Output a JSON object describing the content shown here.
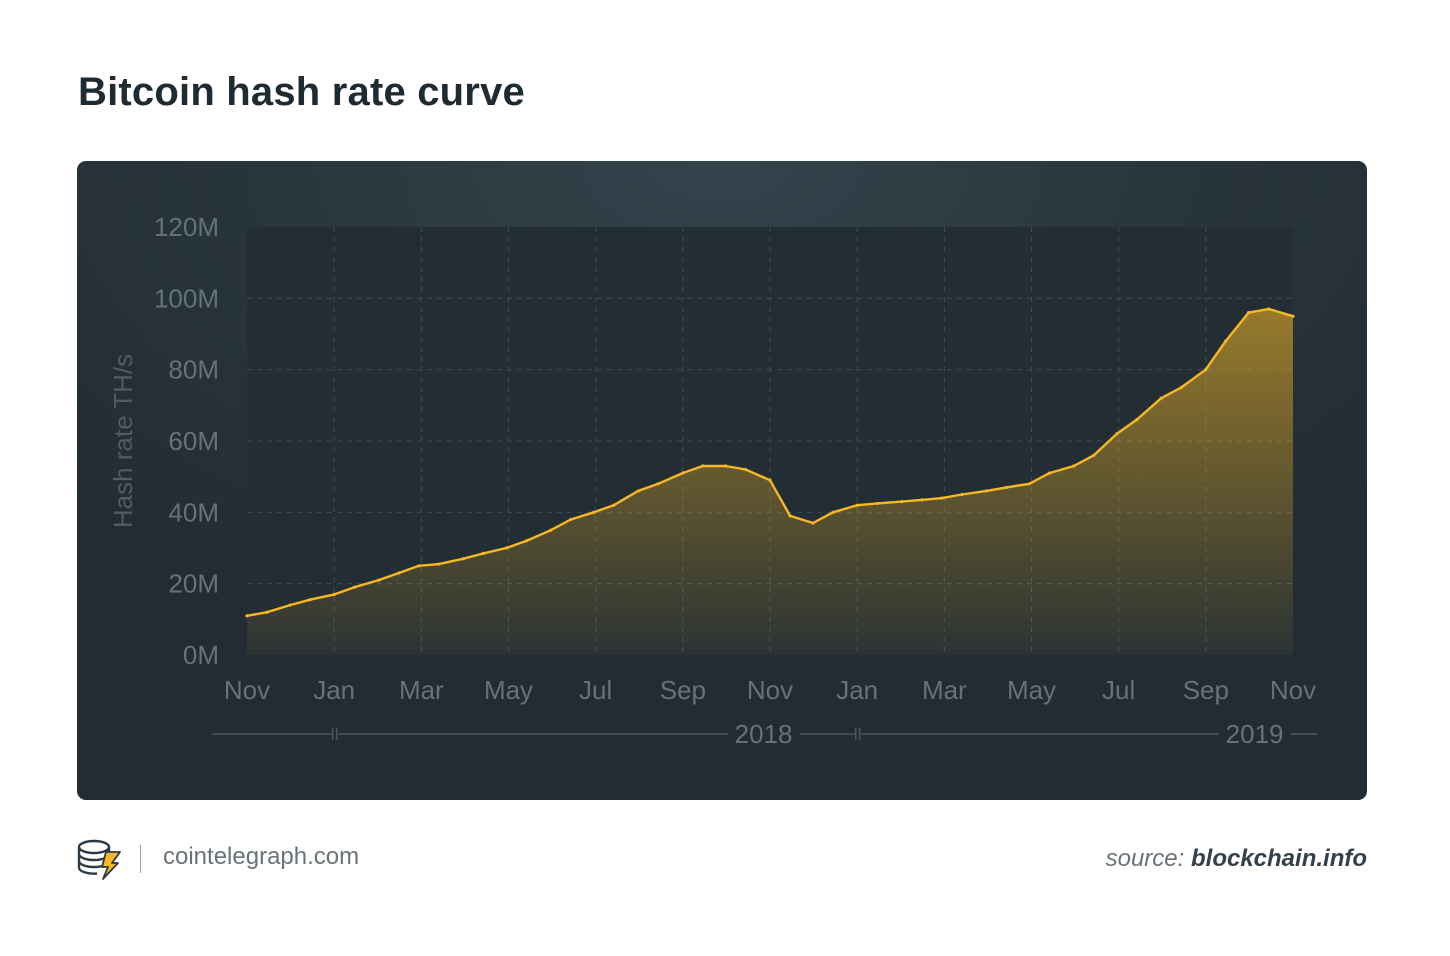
{
  "title": "Bitcoin hash rate curve",
  "footer": {
    "site": "cointelegraph.com",
    "source_prefix": "source:",
    "source_name": "blockchain.info"
  },
  "colors": {
    "line": "#f7b824",
    "card_background": "#2b373e",
    "plot_background": "#232e34",
    "grid": "#3e4b53",
    "tick_text": "#65727a"
  },
  "chart_data": {
    "type": "area",
    "ylabel": "Hash rate TH/s",
    "xlabel": "",
    "ylim": [
      0,
      120
    ],
    "y_unit": "M",
    "y_ticks": [
      "0M",
      "20M",
      "40M",
      "60M",
      "80M",
      "100M",
      "120M"
    ],
    "x_ticks": [
      "Nov",
      "Jan",
      "Mar",
      "May",
      "Jul",
      "Sep",
      "Nov",
      "Jan",
      "Mar",
      "May",
      "Jul",
      "Sep",
      "Nov"
    ],
    "year_labels": [
      "2018",
      "2019"
    ],
    "x_range": [
      "2017-11",
      "2019-11"
    ],
    "grid": true,
    "series": [
      {
        "x": [
          "2017-11-01",
          "2017-11-15",
          "2017-12-01",
          "2017-12-15",
          "2018-01-01",
          "2018-01-15",
          "2018-02-01",
          "2018-02-15",
          "2018-03-01",
          "2018-03-15",
          "2018-04-01",
          "2018-04-15",
          "2018-05-01",
          "2018-05-15",
          "2018-06-01",
          "2018-06-15",
          "2018-07-01",
          "2018-07-15",
          "2018-08-01",
          "2018-08-15",
          "2018-09-01",
          "2018-09-15",
          "2018-10-01",
          "2018-10-15",
          "2018-11-01",
          "2018-11-15",
          "2018-12-01",
          "2018-12-15",
          "2019-01-01",
          "2019-01-15",
          "2019-02-01",
          "2019-02-15",
          "2019-03-01",
          "2019-03-15",
          "2019-04-01",
          "2019-04-15",
          "2019-05-01",
          "2019-05-15",
          "2019-06-01",
          "2019-06-15",
          "2019-07-01",
          "2019-07-15",
          "2019-08-01",
          "2019-08-15",
          "2019-09-01",
          "2019-09-15",
          "2019-10-01",
          "2019-10-15",
          "2019-11-01"
        ],
        "values": [
          11,
          12,
          14,
          15.5,
          17,
          19,
          21,
          23,
          25,
          25.5,
          27,
          28.5,
          30,
          32,
          35,
          38,
          40,
          42,
          46,
          48,
          51,
          53,
          53,
          52,
          49,
          39,
          37,
          40,
          42,
          42.5,
          43,
          43.5,
          44,
          45,
          46,
          47,
          48,
          51,
          53,
          56,
          62,
          66,
          72,
          75,
          80,
          88,
          96,
          97,
          95
        ]
      }
    ]
  }
}
